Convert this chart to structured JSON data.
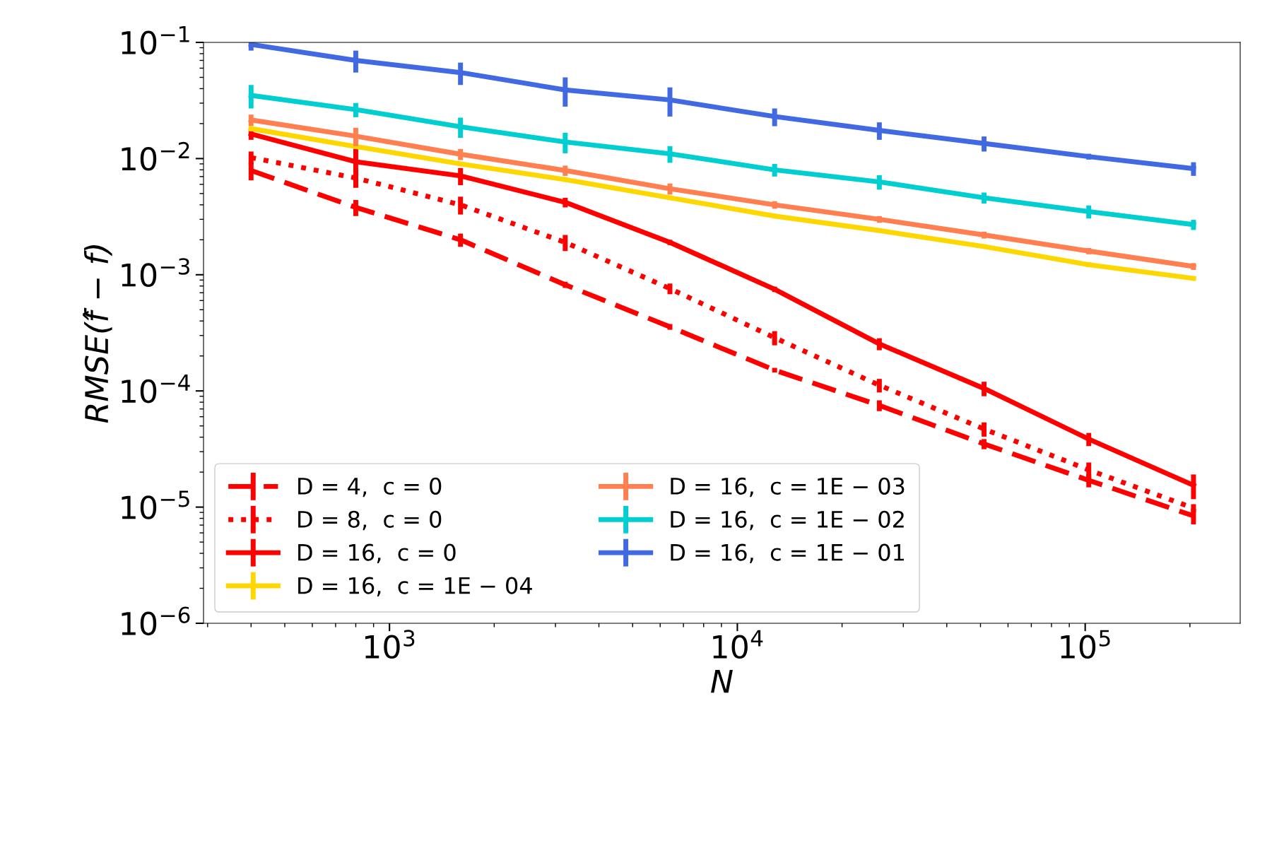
{
  "chart_data": {
    "type": "line",
    "xlabel": "N",
    "ylabel": "RMSE(f̂ − f)",
    "log": "xy",
    "grid": false,
    "legend": "bottom left",
    "marker": "none",
    "x": [
      400,
      800,
      1600,
      3200,
      6400,
      12800,
      25600,
      51200,
      102400,
      204800
    ],
    "xlim": [
      292,
      279000
    ],
    "ylim": [
      1e-06,
      0.1
    ],
    "xticks": [
      {
        "value": 1000,
        "label": "10$^{3}$"
      },
      {
        "value": 10000,
        "label": "10$^{4}$"
      },
      {
        "value": 100000,
        "label": "10$^{5}$"
      }
    ],
    "yticks": [
      {
        "value": 1e-06,
        "label": "10$^{−6}$"
      },
      {
        "value": 1e-05,
        "label": "10$^{−5}$"
      },
      {
        "value": 0.0001,
        "label": "10$^{−4}$"
      },
      {
        "value": 0.001,
        "label": "10$^{−3}$"
      },
      {
        "value": 0.01,
        "label": "10$^{−2}$"
      },
      {
        "value": 0.1,
        "label": "10$^{−1}$"
      }
    ],
    "series": [
      {
        "name": "D = 4,  c = 0",
        "color": "#ff0000",
        "line_style": "dashed",
        "values": [
          0.0079,
          0.0038,
          0.002,
          0.00082,
          0.000356,
          0.000151,
          7.5e-05,
          3.5e-05,
          1.7e-05,
          8.4e-06
        ],
        "errors": [
          0.0014,
          0.0006,
          0.00026,
          5e-05,
          2e-05,
          7e-06,
          8e-06,
          3.5e-06,
          2.2e-06,
          1.3e-06
        ]
      },
      {
        "name": "D = 8,  c = 0",
        "color": "#ff0000",
        "line_style": "dotted",
        "values": [
          0.0102,
          0.0068,
          0.004,
          0.0019,
          0.00076,
          0.000287,
          0.000112,
          4.7e-05,
          2.09e-05,
          9.8e-06
        ],
        "errors": [
          0.0013,
          0.0012,
          0.0007,
          0.0003,
          8e-05,
          4e-05,
          1.5e-05,
          6.6e-06,
          3.3e-06,
          8e-07
        ]
      },
      {
        "name": "D = 16,  c = 0",
        "color": "#ff0000",
        "line_style": "solid",
        "values": [
          0.0163,
          0.0094,
          0.0071,
          0.0042,
          0.0019,
          0.00075,
          0.000254,
          0.000105,
          3.85e-05,
          1.54e-05
        ],
        "errors": [
          0.0018,
          0.0037,
          0.0012,
          0.0004,
          0.0001,
          4e-05,
          3e-05,
          1.5e-05,
          5e-06,
          3.7e-06
        ]
      },
      {
        "name": "D = 16,  c = 1E − 04",
        "color": "#ffd700",
        "line_style": "solid",
        "values": [
          0.0181,
          0.0127,
          0.009,
          0.0066,
          0.0046,
          0.0032,
          0.0024,
          0.00175,
          0.00122,
          0.00093
        ],
        "errors": [
          0.0009,
          0.0006,
          0.0004,
          0.0003,
          0.0002,
          0.00015,
          0.0001,
          8e-05,
          6e-05,
          4e-05
        ]
      },
      {
        "name": "D = 16,  c = 1E − 03",
        "color": "#ff7f50",
        "line_style": "solid",
        "values": [
          0.0215,
          0.0156,
          0.0109,
          0.0079,
          0.0055,
          0.004,
          0.003,
          0.0022,
          0.0016,
          0.00118
        ],
        "errors": [
          0.0024,
          0.0028,
          0.0012,
          0.0008,
          0.0006,
          0.0003,
          0.0002,
          0.00015,
          0.0001,
          8e-05
        ]
      },
      {
        "name": "D = 16,  c = 1E − 02",
        "color": "#00ced1",
        "line_style": "solid",
        "values": [
          0.035,
          0.0264,
          0.0188,
          0.0139,
          0.011,
          0.008,
          0.0063,
          0.0046,
          0.0035,
          0.0027
        ],
        "errors": [
          0.008,
          0.0037,
          0.0037,
          0.0028,
          0.0018,
          0.001,
          0.0009,
          0.0005,
          0.00045,
          0.00027
        ]
      },
      {
        "name": "D = 16,  c = 1E − 01",
        "color": "#4169e1",
        "line_style": "solid",
        "values": [
          0.096,
          0.07,
          0.055,
          0.039,
          0.032,
          0.023,
          0.0175,
          0.0135,
          0.0104,
          0.0082
        ],
        "errors": [
          0.011,
          0.015,
          0.012,
          0.011,
          0.009,
          0.004,
          0.003,
          0.002,
          0.0006,
          0.0011
        ]
      }
    ]
  }
}
